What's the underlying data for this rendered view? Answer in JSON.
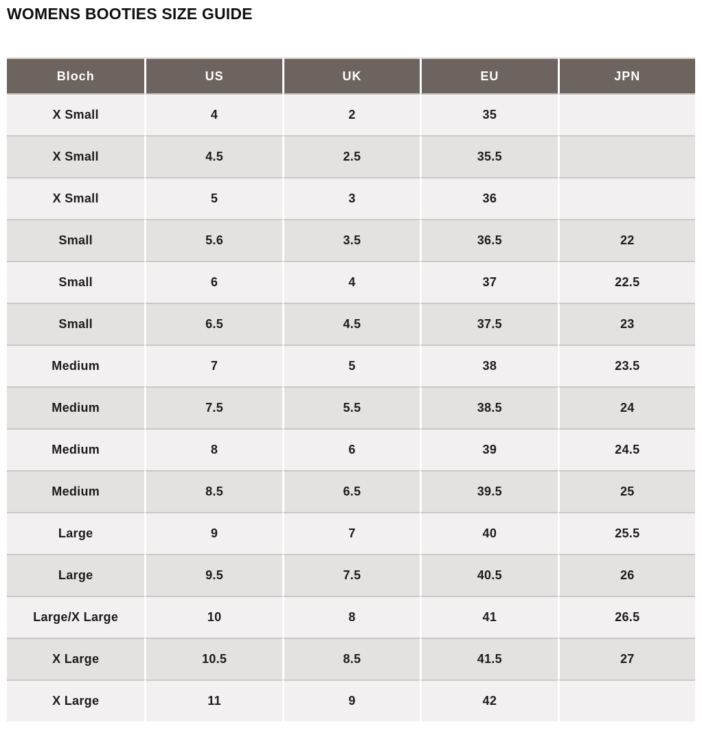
{
  "page": {
    "title": "WOMENS BOOTIES SIZE GUIDE"
  },
  "table": {
    "columns": [
      "Bloch",
      "US",
      "UK",
      "EU",
      "JPN"
    ],
    "rows": [
      [
        "X Small",
        "4",
        "2",
        "35",
        ""
      ],
      [
        "X Small",
        "4.5",
        "2.5",
        "35.5",
        ""
      ],
      [
        "X Small",
        "5",
        "3",
        "36",
        ""
      ],
      [
        "Small",
        "5.6",
        "3.5",
        "36.5",
        "22"
      ],
      [
        "Small",
        "6",
        "4",
        "37",
        "22.5"
      ],
      [
        "Small",
        "6.5",
        "4.5",
        "37.5",
        "23"
      ],
      [
        "Medium",
        "7",
        "5",
        "38",
        "23.5"
      ],
      [
        "Medium",
        "7.5",
        "5.5",
        "38.5",
        "24"
      ],
      [
        "Medium",
        "8",
        "6",
        "39",
        "24.5"
      ],
      [
        "Medium",
        "8.5",
        "6.5",
        "39.5",
        "25"
      ],
      [
        "Large",
        "9",
        "7",
        "40",
        "25.5"
      ],
      [
        "Large",
        "9.5",
        "7.5",
        "40.5",
        "26"
      ],
      [
        "Large/X Large",
        "10",
        "8",
        "41",
        "26.5"
      ],
      [
        "X Large",
        "10.5",
        "8.5",
        "41.5",
        "27"
      ],
      [
        "X Large",
        "11",
        "9",
        "42",
        ""
      ]
    ]
  },
  "colors": {
    "header_bg": "#6d635f",
    "header_text": "#ffffff",
    "row_light": "#f2f0f0",
    "row_dark": "#e4e2e0",
    "divider": "#cdc8c6",
    "cell_text": "#1b1b1b",
    "title_text": "#111111"
  }
}
